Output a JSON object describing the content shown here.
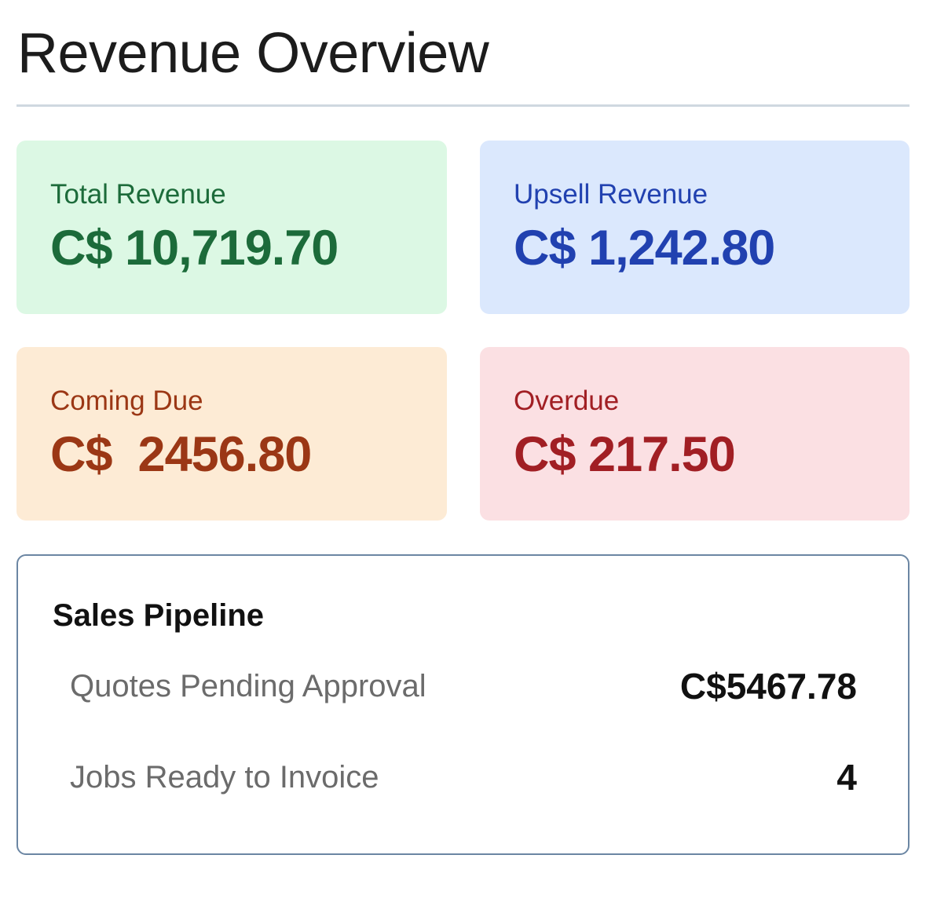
{
  "header": {
    "title": "Revenue Overview"
  },
  "cards": {
    "total_revenue": {
      "label": "Total Revenue",
      "value": "C$ 10,719.70",
      "color": "#1c6b3a",
      "background": "#dcf8e4"
    },
    "upsell_revenue": {
      "label": "Upsell Revenue",
      "value": "C$ 1,242.80",
      "color": "#2141b0",
      "background": "#dbe8fd"
    },
    "coming_due": {
      "label": "Coming Due",
      "value": "C$  2456.80",
      "color": "#9b3715",
      "background": "#fdebd5"
    },
    "overdue": {
      "label": "Overdue",
      "value": "C$ 217.50",
      "color": "#a11f24",
      "background": "#fbe0e3"
    }
  },
  "pipeline": {
    "title": "Sales Pipeline",
    "rows": [
      {
        "label": "Quotes Pending Approval",
        "value": "C$5467.78"
      },
      {
        "label": "Jobs Ready to Invoice",
        "value": "4"
      }
    ]
  }
}
